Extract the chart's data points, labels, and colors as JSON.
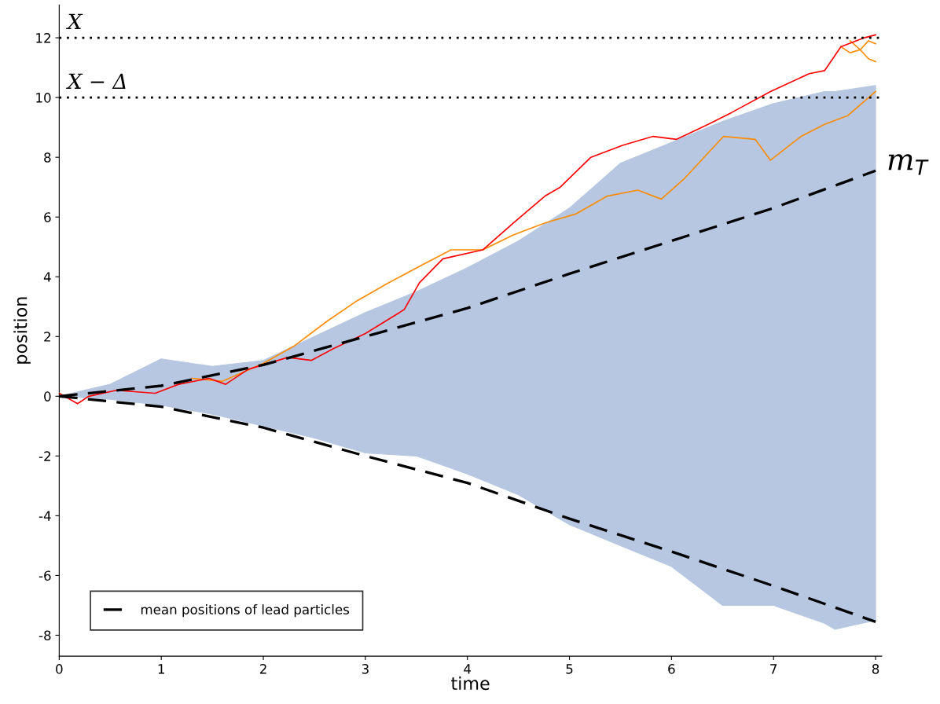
{
  "chart_data": {
    "type": "line",
    "xlabel": "time",
    "ylabel": "position",
    "xlim": [
      0,
      8.06
    ],
    "ylim": [
      -8.7,
      13.1
    ],
    "xticks": [
      0,
      1,
      2,
      3,
      4,
      5,
      6,
      7,
      8
    ],
    "yticks": [
      -8,
      -6,
      -4,
      -2,
      0,
      2,
      4,
      6,
      8,
      10,
      12
    ],
    "grid": false,
    "legend": "bottom left",
    "line_style": "solid",
    "marker": "none",
    "series": [
      {
        "type": "area",
        "color": "#b7c7e1",
        "x": [
          0,
          0.5,
          1,
          1.5,
          2,
          2.5,
          3,
          3.5,
          4,
          4.5,
          5,
          5.5,
          6,
          6.5,
          7,
          7.5,
          7.6,
          8
        ],
        "values": [
          0,
          0.4,
          1.25,
          1.0,
          1.2,
          2.0,
          2.8,
          3.5,
          4.3,
          5.2,
          6.3,
          7.8,
          8.5,
          9.2,
          9.8,
          10.2,
          10.2,
          10.4
        ]
      },
      {
        "type": "area",
        "color": "#b7c7e1",
        "x": [
          0,
          0.5,
          1,
          1.5,
          2,
          2.5,
          3,
          3.5,
          4,
          4.5,
          5,
          5.5,
          6,
          6.5,
          7,
          7.5,
          7.6,
          8
        ],
        "values": [
          0,
          -0.1,
          -0.3,
          -0.6,
          -1.0,
          -1.4,
          -1.9,
          -2.0,
          -2.6,
          -3.3,
          -4.3,
          -5.0,
          -5.7,
          -7.0,
          -7.0,
          -7.6,
          -7.8,
          -7.5
        ]
      },
      {
        "color": "#ff8c00",
        "x": [
          1.3,
          1.6,
          2.0,
          2.31,
          2.62,
          2.92,
          3.23,
          3.53,
          3.84,
          4.15,
          4.45,
          4.76,
          5.06,
          5.37,
          5.67,
          5.9,
          6.13,
          6.51,
          6.82,
          6.97,
          7.27,
          7.5,
          7.73,
          8.0
        ],
        "values": [
          0.6,
          0.5,
          1.1,
          1.7,
          2.5,
          3.2,
          3.8,
          4.35,
          4.9,
          4.9,
          5.4,
          5.8,
          6.1,
          6.7,
          6.9,
          6.6,
          7.3,
          8.7,
          8.6,
          7.9,
          8.7,
          9.1,
          9.4,
          10.2
        ]
      },
      {
        "color": "#ff8c00",
        "x": [
          7.66,
          7.75,
          7.85,
          7.93,
          8.0
        ],
        "values": [
          11.7,
          11.5,
          11.6,
          11.3,
          11.2
        ]
      },
      {
        "color": "#ff8c00",
        "x": [
          7.75,
          7.85,
          7.93,
          8.0
        ],
        "values": [
          11.9,
          11.6,
          11.9,
          11.8
        ]
      },
      {
        "color": "#ff0000",
        "x": [
          0,
          0.18,
          0.29,
          0.56,
          0.94,
          1.17,
          1.47,
          1.63,
          1.85,
          2.24,
          2.47,
          2.69,
          3.0,
          3.38,
          3.53,
          3.76,
          4.15,
          4.45,
          4.76,
          4.91,
          5.21,
          5.52,
          5.82,
          6.05,
          6.36,
          6.59,
          6.97,
          7.35,
          7.5,
          7.66,
          7.89,
          8.0
        ],
        "values": [
          0.1,
          -0.25,
          0,
          0.2,
          0.1,
          0.4,
          0.6,
          0.4,
          0.9,
          1.3,
          1.2,
          1.6,
          2.1,
          2.9,
          3.8,
          4.6,
          4.9,
          5.8,
          6.7,
          7.0,
          8.0,
          8.4,
          8.7,
          8.6,
          9.1,
          9.5,
          10.2,
          10.8,
          10.9,
          11.7,
          12.0,
          12.1
        ]
      },
      {
        "name": "mean positions of lead particles",
        "color": "#000000",
        "line_style": "dashed",
        "x": [
          0,
          1,
          2,
          3,
          4,
          5,
          6,
          7,
          8
        ],
        "values": [
          0,
          0.35,
          1.05,
          2.0,
          2.95,
          4.1,
          5.2,
          6.3,
          7.55
        ]
      },
      {
        "color": "#000000",
        "line_style": "dashed",
        "x": [
          0,
          1,
          2,
          3,
          4,
          5,
          6,
          7,
          8
        ],
        "values": [
          0,
          -0.35,
          -1.05,
          -2.0,
          -2.9,
          -4.1,
          -5.2,
          -6.35,
          -7.55
        ]
      }
    ],
    "ref_lines": [
      {
        "axis": "y",
        "value": 12,
        "label": "X",
        "color": "#000000",
        "line_style": "dotted"
      },
      {
        "axis": "y",
        "value": 10,
        "label": "X − Δ",
        "color": "#000000",
        "line_style": "dotted"
      }
    ],
    "annotations": [
      {
        "text": "m$_{T}$",
        "x": 8,
        "y": 7.55
      }
    ]
  }
}
